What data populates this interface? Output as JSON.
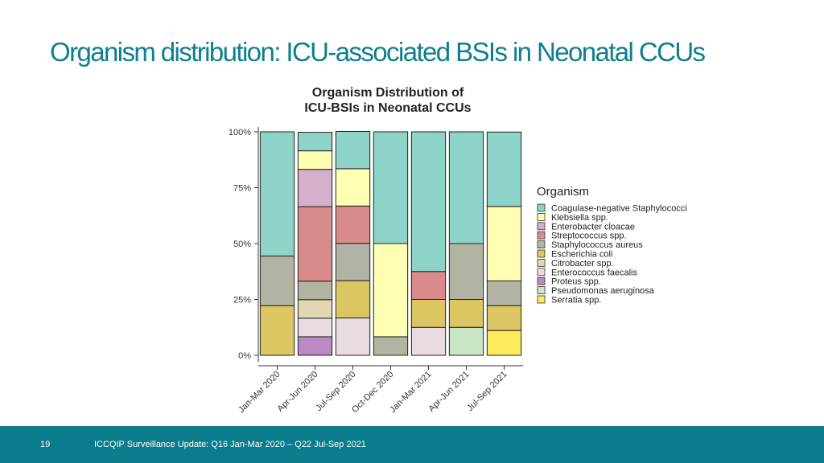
{
  "slide": {
    "title": "Organism distribution: ICU-associated BSIs in Neonatal CCUs",
    "page_number": "19",
    "footer_text": "ICCQIP Surveillance Update: Q16 Jan-Mar 2020 – Q22 Jul-Sep 2021"
  },
  "colors": {
    "title": "#0f7f8f",
    "footer_bar": "#0b7c8c"
  },
  "chart_data": {
    "type": "bar",
    "stacked": true,
    "percent": true,
    "title_lines": [
      "Organism Distribution of",
      "ICU-BSIs in Neonatal CCUs"
    ],
    "xlabel": "",
    "ylabel": "",
    "ylim": [
      0,
      100
    ],
    "yticks": [
      0,
      25,
      50,
      75,
      100
    ],
    "ytick_labels": [
      "0%",
      "25%",
      "50%",
      "75%",
      "100%"
    ],
    "categories": [
      "Jan-Mar 2020",
      "Apr-Jun 2020",
      "Jul-Sep 2020",
      "Oct-Dec 2020",
      "Jan-Mar 2021",
      "Apr-Jun 2021",
      "Jul-Sep 2021"
    ],
    "legend_title": "Organism",
    "legend_position": "right",
    "grid": false,
    "series": [
      {
        "name": "Coagulase-negative Staphylococci",
        "color": "#8dd3c7",
        "values": [
          55.6,
          8.3,
          16.7,
          50,
          62.5,
          50,
          33.3
        ]
      },
      {
        "name": "Klebsiella spp.",
        "color": "#ffffb3",
        "values": [
          0,
          8.3,
          16.7,
          41.7,
          0,
          0,
          33.3
        ]
      },
      {
        "name": "Enterobacter cloacae",
        "color": "#d4b0cb",
        "values": [
          0,
          16.7,
          0,
          0,
          0,
          0,
          0
        ]
      },
      {
        "name": "Streptococcus spp.",
        "color": "#d98b8b",
        "values": [
          0,
          33.3,
          16.7,
          0,
          12.5,
          0,
          0
        ]
      },
      {
        "name": "Staphylococcus aureus",
        "color": "#b3b3a3",
        "values": [
          22.2,
          8.3,
          16.7,
          8.3,
          0,
          25,
          11.1
        ]
      },
      {
        "name": "Escherichia coli",
        "color": "#dcc664",
        "values": [
          22.2,
          0,
          16.7,
          0,
          12.5,
          12.5,
          11.1
        ]
      },
      {
        "name": "Citrobacter spp.",
        "color": "#e2d7b0",
        "values": [
          0,
          8.3,
          0,
          0,
          0,
          0,
          0
        ]
      },
      {
        "name": "Enterococcus faecalis",
        "color": "#e8dbe3",
        "values": [
          0,
          8.3,
          16.7,
          0,
          12.5,
          0,
          0
        ]
      },
      {
        "name": "Proteus spp.",
        "color": "#bb8ac3",
        "values": [
          0,
          8.3,
          0,
          0,
          0,
          0,
          0
        ]
      },
      {
        "name": "Pseudomonas aeruginosa",
        "color": "#c9e5c6",
        "values": [
          0,
          0,
          0,
          0,
          0,
          12.5,
          0
        ]
      },
      {
        "name": "Serratia spp.",
        "color": "#ffe95c",
        "values": [
          0,
          0,
          0,
          0,
          0,
          0,
          11.1
        ]
      }
    ]
  }
}
